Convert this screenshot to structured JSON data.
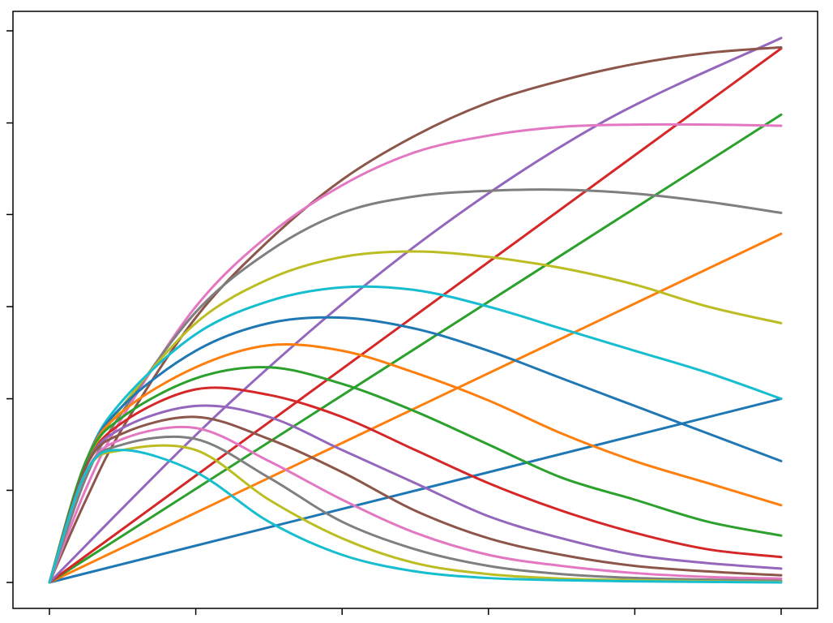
{
  "chart_data": {
    "type": "line",
    "title": "",
    "xlabel": "",
    "ylabel": "",
    "xlim": [
      0,
      1
    ],
    "ylim": [
      -0.03,
      1.03
    ],
    "grid": false,
    "legend": "none",
    "x_ticks": [
      0,
      0.2,
      0.4,
      0.6,
      0.8,
      1.0
    ],
    "y_ticks": [
      0,
      0.167,
      0.333,
      0.5,
      0.667,
      0.833,
      1.0
    ],
    "tick_labels_shown": false,
    "series": [
      {
        "color": "#1f77b4",
        "x": [
          0,
          1
        ],
        "y": [
          0,
          0.333
        ]
      },
      {
        "color": "#ff7f0e",
        "x": [
          0,
          1
        ],
        "y": [
          0,
          0.632
        ]
      },
      {
        "color": "#2ca02c",
        "x": [
          0,
          1
        ],
        "y": [
          0,
          0.848
        ]
      },
      {
        "color": "#d62728",
        "x": [
          0,
          1
        ],
        "y": [
          0,
          0.968
        ]
      },
      {
        "color": "#9467bd",
        "x": [
          0,
          0.25,
          0.5,
          0.75,
          1.0
        ],
        "y": [
          0,
          0.33,
          0.61,
          0.83,
          0.987
        ]
      },
      {
        "color": "#8c564b",
        "x": [
          0,
          0.05,
          0.1,
          0.2,
          0.3,
          0.4,
          0.5,
          0.6,
          0.7,
          0.8,
          0.9,
          1.0
        ],
        "y": [
          0,
          0.15,
          0.28,
          0.48,
          0.62,
          0.73,
          0.81,
          0.87,
          0.91,
          0.94,
          0.96,
          0.97
        ]
      },
      {
        "color": "#e377c2",
        "x": [
          0,
          0.05,
          0.1,
          0.2,
          0.3,
          0.4,
          0.5,
          0.6,
          0.7,
          0.8,
          0.9,
          1.0
        ],
        "y": [
          0,
          0.17,
          0.3,
          0.5,
          0.63,
          0.72,
          0.78,
          0.81,
          0.826,
          0.83,
          0.83,
          0.828
        ]
      },
      {
        "color": "#7f7f7f",
        "x": [
          0,
          0.05,
          0.1,
          0.2,
          0.3,
          0.4,
          0.5,
          0.6,
          0.7,
          0.8,
          0.9,
          1.0
        ],
        "y": [
          0,
          0.19,
          0.31,
          0.49,
          0.6,
          0.67,
          0.7,
          0.71,
          0.712,
          0.705,
          0.69,
          0.67
        ]
      },
      {
        "color": "#bcbd22",
        "x": [
          0,
          0.05,
          0.1,
          0.2,
          0.3,
          0.4,
          0.5,
          0.6,
          0.7,
          0.8,
          0.9,
          1.0
        ],
        "y": [
          0,
          0.21,
          0.32,
          0.47,
          0.55,
          0.59,
          0.6,
          0.59,
          0.57,
          0.54,
          0.5,
          0.47
        ]
      },
      {
        "color": "#17becf",
        "x": [
          0,
          0.05,
          0.1,
          0.2,
          0.3,
          0.4,
          0.5,
          0.6,
          0.7,
          0.8,
          0.9,
          1.0
        ],
        "y": [
          0,
          0.22,
          0.33,
          0.45,
          0.51,
          0.535,
          0.53,
          0.5,
          0.46,
          0.42,
          0.38,
          0.333
        ]
      },
      {
        "color": "#1f77b4",
        "x": [
          0,
          0.05,
          0.1,
          0.2,
          0.3,
          0.4,
          0.5,
          0.6,
          0.7,
          0.8,
          0.9,
          1.0
        ],
        "y": [
          0,
          0.22,
          0.32,
          0.42,
          0.47,
          0.48,
          0.46,
          0.42,
          0.37,
          0.32,
          0.27,
          0.22
        ]
      },
      {
        "color": "#ff7f0e",
        "x": [
          0,
          0.05,
          0.1,
          0.2,
          0.3,
          0.4,
          0.5,
          0.6,
          0.7,
          0.8,
          0.9,
          1.0
        ],
        "y": [
          0,
          0.22,
          0.31,
          0.39,
          0.43,
          0.42,
          0.38,
          0.33,
          0.27,
          0.22,
          0.18,
          0.14
        ]
      },
      {
        "color": "#2ca02c",
        "x": [
          0,
          0.05,
          0.1,
          0.2,
          0.3,
          0.4,
          0.5,
          0.6,
          0.7,
          0.8,
          0.9,
          1.0
        ],
        "y": [
          0,
          0.22,
          0.3,
          0.37,
          0.39,
          0.36,
          0.31,
          0.25,
          0.19,
          0.15,
          0.11,
          0.085
        ]
      },
      {
        "color": "#d62728",
        "x": [
          0,
          0.05,
          0.1,
          0.2,
          0.3,
          0.4,
          0.5,
          0.6,
          0.7,
          0.8,
          0.9,
          1.0
        ],
        "y": [
          0,
          0.21,
          0.29,
          0.35,
          0.34,
          0.3,
          0.24,
          0.18,
          0.13,
          0.09,
          0.06,
          0.046
        ]
      },
      {
        "color": "#9467bd",
        "x": [
          0,
          0.05,
          0.1,
          0.2,
          0.3,
          0.4,
          0.5,
          0.6,
          0.7,
          0.8,
          0.9,
          1.0
        ],
        "y": [
          0,
          0.21,
          0.28,
          0.32,
          0.3,
          0.24,
          0.18,
          0.12,
          0.08,
          0.05,
          0.035,
          0.025
        ]
      },
      {
        "color": "#8c564b",
        "x": [
          0,
          0.05,
          0.1,
          0.2,
          0.3,
          0.4,
          0.5,
          0.6,
          0.7,
          0.8,
          0.9,
          1.0
        ],
        "y": [
          0,
          0.21,
          0.27,
          0.3,
          0.26,
          0.2,
          0.13,
          0.08,
          0.05,
          0.03,
          0.02,
          0.013
        ]
      },
      {
        "color": "#e377c2",
        "x": [
          0,
          0.05,
          0.1,
          0.2,
          0.3,
          0.4,
          0.5,
          0.6,
          0.7,
          0.8,
          0.9,
          1.0
        ],
        "y": [
          0,
          0.2,
          0.26,
          0.28,
          0.22,
          0.15,
          0.09,
          0.05,
          0.03,
          0.017,
          0.01,
          0.007
        ]
      },
      {
        "color": "#7f7f7f",
        "x": [
          0,
          0.05,
          0.1,
          0.2,
          0.3,
          0.4,
          0.5,
          0.6,
          0.7,
          0.8,
          0.9,
          1.0
        ],
        "y": [
          0,
          0.2,
          0.25,
          0.26,
          0.19,
          0.11,
          0.06,
          0.03,
          0.015,
          0.008,
          0.005,
          0.003
        ]
      },
      {
        "color": "#bcbd22",
        "x": [
          0,
          0.05,
          0.1,
          0.2,
          0.3,
          0.4,
          0.5,
          0.6,
          0.7,
          0.8,
          0.9,
          1.0
        ],
        "y": [
          0,
          0.2,
          0.24,
          0.24,
          0.15,
          0.08,
          0.035,
          0.015,
          0.007,
          0.004,
          0.002,
          0.001
        ]
      },
      {
        "color": "#17becf",
        "x": [
          0,
          0.05,
          0.1,
          0.2,
          0.3,
          0.4,
          0.5,
          0.6,
          0.7,
          0.8,
          0.9,
          1.0
        ],
        "y": [
          0,
          0.2,
          0.24,
          0.2,
          0.11,
          0.05,
          0.02,
          0.008,
          0.004,
          0.002,
          0.001,
          0.0
        ]
      }
    ]
  }
}
